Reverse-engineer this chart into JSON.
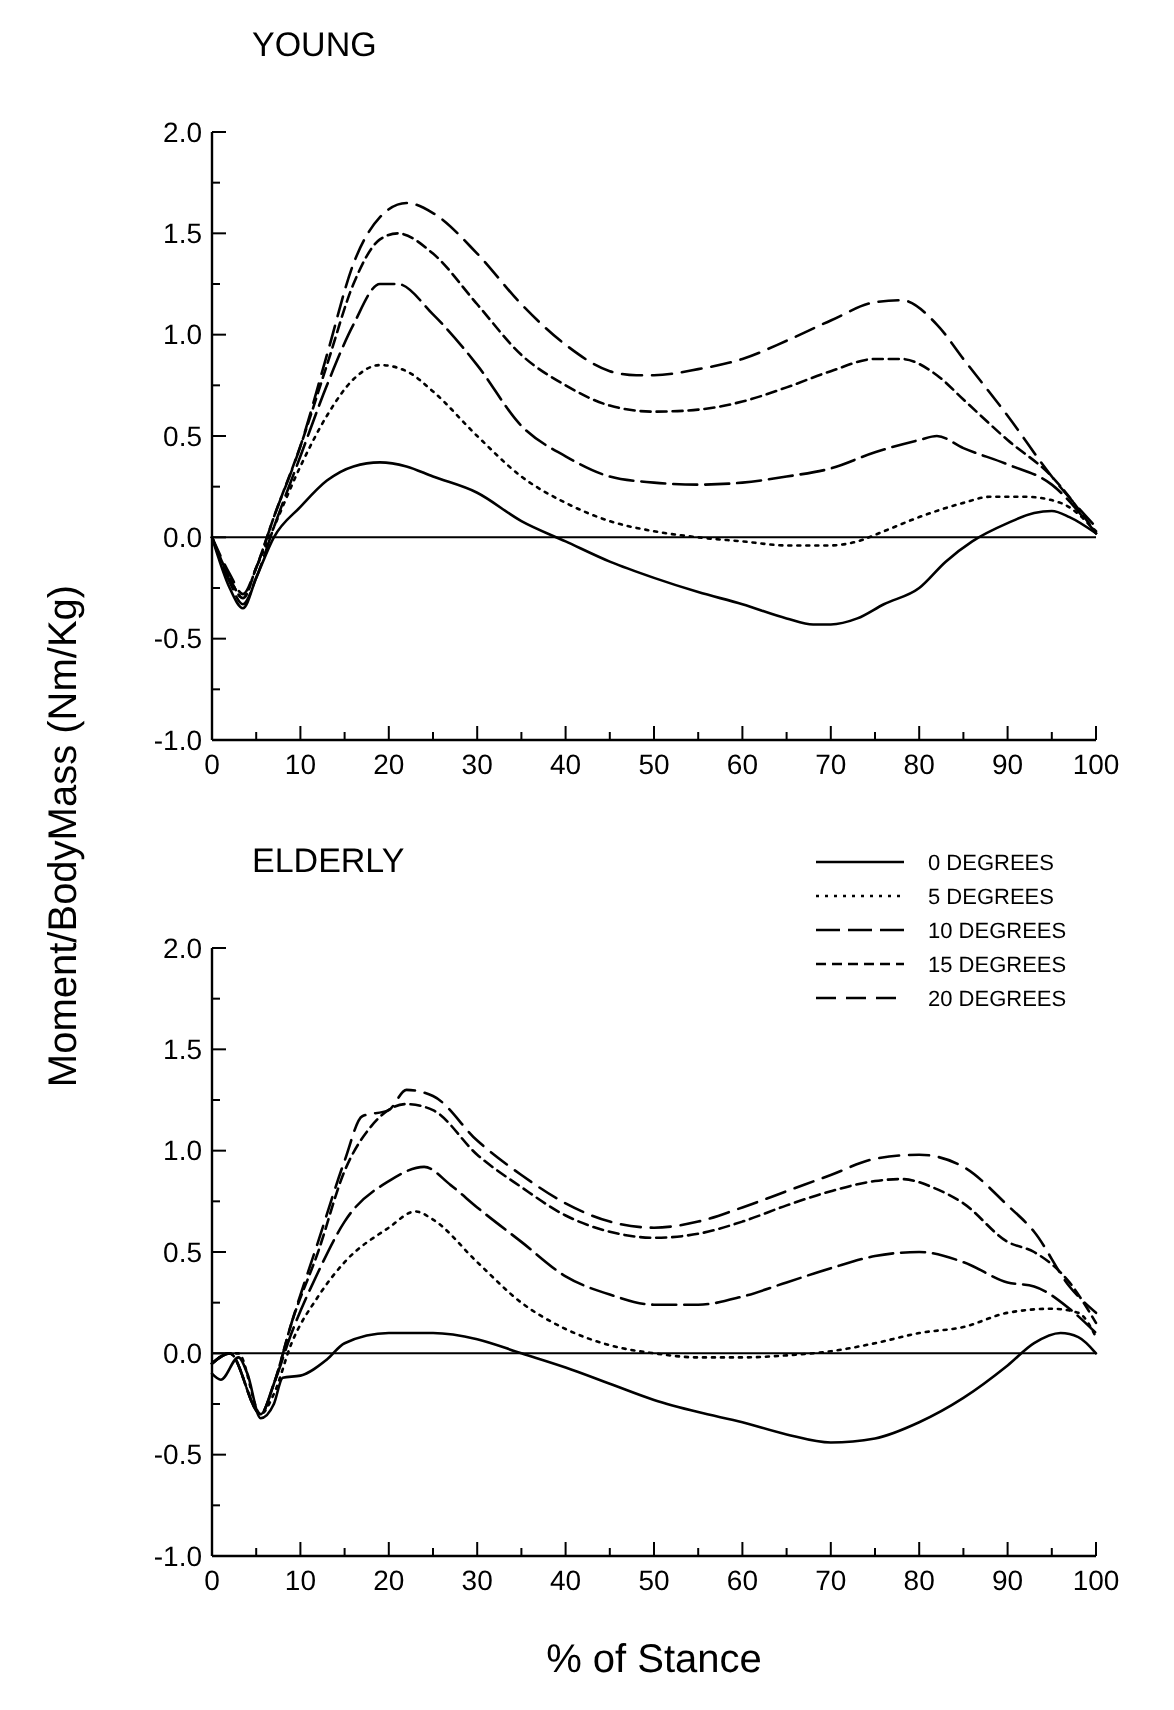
{
  "chart_data": [
    {
      "type": "line",
      "title": "YOUNG",
      "ylabel": "Moment/BodyMass (Nm/Kg)",
      "xlim": [
        0,
        100
      ],
      "ylim": [
        -1,
        2
      ],
      "xticks": [
        0,
        {
          "value": 5,
          "label": null
        },
        10,
        {
          "value": 15,
          "label": null
        },
        20,
        {
          "value": 25,
          "label": null
        },
        30,
        {
          "value": 35,
          "label": null
        },
        40,
        {
          "value": 45,
          "label": null
        },
        50,
        {
          "value": 55,
          "label": null
        },
        60,
        {
          "value": 65,
          "label": null
        },
        70,
        {
          "value": 75,
          "label": null
        },
        80,
        {
          "value": 85,
          "label": null
        },
        90,
        {
          "value": 95,
          "label": null
        },
        100
      ],
      "yticks": [
        {
          "value": -1,
          "label": "-1.0"
        },
        {
          "value": -0.75,
          "label": null
        },
        {
          "value": -0.5,
          "label": "-0.5"
        },
        {
          "value": -0.25,
          "label": null
        },
        {
          "value": 0,
          "label": "0.0"
        },
        {
          "value": 0.25,
          "label": null
        },
        {
          "value": 0.5,
          "label": "0.5"
        },
        {
          "value": 0.75,
          "label": null
        },
        {
          "value": 1,
          "label": "1.0"
        },
        {
          "value": 1.25,
          "label": null
        },
        {
          "value": 1.5,
          "label": "1.5"
        },
        {
          "value": 1.75,
          "label": null
        },
        {
          "value": 2,
          "label": "2.0"
        }
      ],
      "ref_lines": [
        {
          "axis": "y",
          "value": 0,
          "color": "#000000"
        }
      ],
      "grid": false,
      "legend": false,
      "series": [
        {
          "color": "#000000",
          "line_style": "solid",
          "x": [
            0,
            2,
            3.5,
            5,
            7,
            10,
            13,
            16,
            19,
            22,
            25,
            30,
            35,
            40,
            45,
            50,
            55,
            60,
            65,
            68,
            70,
            73,
            76,
            80,
            83,
            86,
            90,
            93,
            95,
            97,
            100
          ],
          "values": [
            0,
            -0.25,
            -0.35,
            -0.2,
            0,
            0.15,
            0.28,
            0.35,
            0.37,
            0.35,
            0.3,
            0.22,
            0.08,
            -0.02,
            -0.12,
            -0.2,
            -0.27,
            -0.33,
            -0.4,
            -0.43,
            -0.43,
            -0.4,
            -0.33,
            -0.25,
            -0.12,
            -0.02,
            0.07,
            0.12,
            0.13,
            0.1,
            0.02
          ]
        },
        {
          "color": "#000000",
          "line_style": "dotted",
          "x": [
            0,
            2,
            3.5,
            5,
            7,
            10,
            13,
            16,
            19,
            22,
            25,
            30,
            35,
            40,
            45,
            50,
            55,
            60,
            65,
            70,
            73,
            76,
            80,
            85,
            88,
            92,
            96,
            100
          ],
          "values": [
            0,
            -0.2,
            -0.3,
            -0.15,
            0.05,
            0.35,
            0.6,
            0.78,
            0.85,
            0.82,
            0.72,
            0.5,
            0.3,
            0.17,
            0.08,
            0.03,
            0,
            -0.02,
            -0.04,
            -0.04,
            -0.02,
            0.03,
            0.1,
            0.17,
            0.2,
            0.2,
            0.17,
            0.03
          ]
        },
        {
          "color": "#000000",
          "line_style": "dashed",
          "x": [
            0,
            2,
            3.5,
            5,
            7,
            10,
            13,
            16,
            19,
            21,
            25,
            30,
            35,
            40,
            45,
            50,
            55,
            60,
            65,
            70,
            75,
            80,
            82,
            85,
            90,
            95,
            100
          ],
          "values": [
            0,
            -0.22,
            -0.33,
            -0.2,
            0.05,
            0.4,
            0.75,
            1.05,
            1.25,
            1.25,
            1.1,
            0.85,
            0.55,
            0.4,
            0.3,
            0.27,
            0.26,
            0.27,
            0.3,
            0.34,
            0.42,
            0.48,
            0.5,
            0.44,
            0.36,
            0.26,
            0.02
          ]
        },
        {
          "color": "#000000",
          "line_style": "dashed",
          "x": [
            0,
            2,
            3.5,
            5,
            7,
            10,
            13,
            16,
            19,
            21,
            25,
            30,
            35,
            40,
            45,
            50,
            55,
            60,
            65,
            70,
            75,
            78,
            82,
            85,
            90,
            95,
            100
          ],
          "values": [
            0,
            -0.2,
            -0.3,
            -0.15,
            0.1,
            0.45,
            0.85,
            1.25,
            1.47,
            1.5,
            1.4,
            1.15,
            0.9,
            0.75,
            0.65,
            0.62,
            0.63,
            0.67,
            0.74,
            0.82,
            0.88,
            0.88,
            0.8,
            0.68,
            0.48,
            0.3,
            0.02
          ]
        },
        {
          "color": "#000000",
          "line_style": "dashed",
          "x": [
            0,
            2,
            3.5,
            5,
            7,
            10,
            13,
            16,
            19,
            22,
            25,
            30,
            35,
            40,
            45,
            48,
            50,
            55,
            60,
            65,
            70,
            75,
            78,
            82,
            85,
            90,
            95,
            100
          ],
          "values": [
            0,
            -0.18,
            -0.28,
            -0.15,
            0.1,
            0.45,
            0.9,
            1.35,
            1.58,
            1.65,
            1.6,
            1.4,
            1.15,
            0.95,
            0.82,
            0.8,
            0.8,
            0.83,
            0.88,
            0.97,
            1.07,
            1.16,
            1.17,
            1.05,
            0.88,
            0.6,
            0.3,
            0.05
          ]
        }
      ]
    },
    {
      "type": "line",
      "title": "ELDERLY",
      "xlabel": "% of Stance",
      "xlim": [
        0,
        100
      ],
      "ylim": [
        -1,
        2
      ],
      "xticks": [
        0,
        {
          "value": 5,
          "label": null
        },
        10,
        {
          "value": 15,
          "label": null
        },
        20,
        {
          "value": 25,
          "label": null
        },
        30,
        {
          "value": 35,
          "label": null
        },
        40,
        {
          "value": 45,
          "label": null
        },
        50,
        {
          "value": 55,
          "label": null
        },
        60,
        {
          "value": 65,
          "label": null
        },
        70,
        {
          "value": 75,
          "label": null
        },
        80,
        {
          "value": 85,
          "label": null
        },
        90,
        {
          "value": 95,
          "label": null
        },
        100
      ],
      "yticks": [
        {
          "value": -1,
          "label": "-1.0"
        },
        {
          "value": -0.75,
          "label": null
        },
        {
          "value": -0.5,
          "label": "-0.5"
        },
        {
          "value": -0.25,
          "label": null
        },
        {
          "value": 0,
          "label": "0.0"
        },
        {
          "value": 0.25,
          "label": null
        },
        {
          "value": 0.5,
          "label": "0.5"
        },
        {
          "value": 0.75,
          "label": null
        },
        {
          "value": 1,
          "label": "1.0"
        },
        {
          "value": 1.25,
          "label": null
        },
        {
          "value": 1.5,
          "label": "1.5"
        },
        {
          "value": 1.75,
          "label": null
        },
        {
          "value": 2,
          "label": "2.0"
        }
      ],
      "ref_lines": [
        {
          "axis": "y",
          "value": 0,
          "color": "#000000"
        }
      ],
      "grid": false,
      "legend": "top right",
      "series": [
        {
          "name": "0 DEGREES",
          "color": "#000000",
          "line_style": "solid",
          "x": [
            0,
            1,
            3,
            4,
            5.5,
            7,
            8,
            10,
            13,
            15,
            20,
            25,
            30,
            35,
            40,
            45,
            50,
            55,
            60,
            65,
            70,
            75,
            80,
            85,
            90,
            93,
            96,
            98,
            100
          ],
          "values": [
            -0.1,
            -0.13,
            -0.02,
            -0.1,
            -0.32,
            -0.25,
            -0.12,
            -0.11,
            -0.03,
            0.05,
            0.1,
            0.1,
            0.07,
            0,
            -0.07,
            -0.15,
            -0.23,
            -0.29,
            -0.34,
            -0.4,
            -0.44,
            -0.42,
            -0.34,
            -0.22,
            -0.06,
            0.05,
            0.1,
            0.08,
            0
          ]
        },
        {
          "name": "5 DEGREES",
          "color": "#000000",
          "line_style": "dotted",
          "x": [
            0,
            2,
            3,
            5.5,
            7,
            9,
            12,
            15,
            20,
            23,
            25,
            30,
            35,
            40,
            45,
            50,
            55,
            60,
            65,
            70,
            75,
            80,
            85,
            90,
            95,
            98,
            100
          ],
          "values": [
            -0.05,
            0,
            0,
            -0.3,
            -0.2,
            0.05,
            0.28,
            0.45,
            0.62,
            0.7,
            0.66,
            0.45,
            0.25,
            0.12,
            0.04,
            0,
            -0.02,
            -0.02,
            -0.01,
            0.01,
            0.05,
            0.1,
            0.13,
            0.2,
            0.22,
            0.2,
            0.08
          ]
        },
        {
          "name": "10 DEGREES",
          "color": "#000000",
          "line_style": "dashed",
          "x": [
            0,
            2,
            5.5,
            7,
            9,
            12,
            15,
            20,
            24,
            27,
            30,
            35,
            40,
            45,
            50,
            55,
            60,
            65,
            70,
            75,
            80,
            85,
            90,
            93,
            97,
            100
          ],
          "values": [
            -0.05,
            0,
            -0.3,
            -0.15,
            0.1,
            0.4,
            0.65,
            0.85,
            0.92,
            0.83,
            0.72,
            0.55,
            0.38,
            0.29,
            0.24,
            0.24,
            0.28,
            0.35,
            0.42,
            0.48,
            0.5,
            0.45,
            0.35,
            0.33,
            0.22,
            0.1
          ]
        },
        {
          "name": "15 DEGREES",
          "color": "#000000",
          "line_style": "dashed",
          "x": [
            0,
            2,
            5.5,
            7,
            9,
            12,
            15,
            18,
            22,
            25,
            30,
            35,
            40,
            45,
            50,
            55,
            60,
            65,
            70,
            75,
            78,
            82,
            85,
            90,
            93,
            97,
            100
          ],
          "values": [
            -0.05,
            0,
            -0.3,
            -0.15,
            0.15,
            0.5,
            0.9,
            1.12,
            1.23,
            1.2,
            0.98,
            0.82,
            0.68,
            0.6,
            0.57,
            0.59,
            0.65,
            0.73,
            0.8,
            0.85,
            0.86,
            0.81,
            0.74,
            0.55,
            0.5,
            0.35,
            0.15
          ]
        },
        {
          "name": "20 DEGREES",
          "color": "#000000",
          "line_style": "dashed",
          "x": [
            0,
            2,
            5.5,
            7,
            9,
            12,
            15,
            17,
            20,
            22,
            25,
            30,
            35,
            40,
            45,
            50,
            55,
            60,
            65,
            70,
            75,
            80,
            85,
            90,
            93,
            97,
            100
          ],
          "values": [
            -0.05,
            0,
            -0.3,
            -0.15,
            0.15,
            0.55,
            0.95,
            1.17,
            1.2,
            1.3,
            1.27,
            1.05,
            0.88,
            0.74,
            0.65,
            0.62,
            0.65,
            0.72,
            0.8,
            0.88,
            0.96,
            0.98,
            0.92,
            0.73,
            0.6,
            0.33,
            0.2
          ]
        }
      ]
    }
  ]
}
